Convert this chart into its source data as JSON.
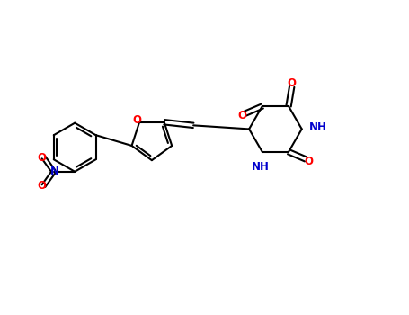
{
  "background_color": "#ffffff",
  "bond_color": "#000000",
  "atom_colors": {
    "O": "#ff0000",
    "N": "#0000cd",
    "C": "#000000",
    "H": "#000000"
  },
  "fig_width": 4.55,
  "fig_height": 3.5,
  "dpi": 100
}
